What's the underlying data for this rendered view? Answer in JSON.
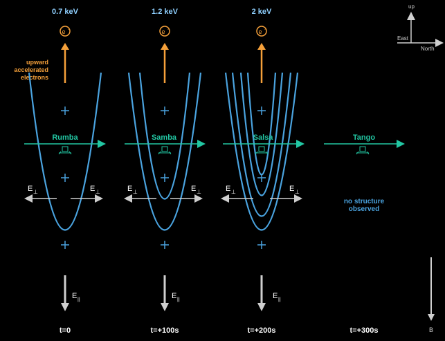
{
  "energies": [
    "0.7 keV",
    "1.2 keV",
    "2 keV"
  ],
  "electron_symbol": "e",
  "electron_sup": "-",
  "upward_label": [
    "upward",
    "accelerated",
    "electrons"
  ],
  "spacecraft": [
    "Rumba",
    "Samba",
    "Salsa",
    "Tango"
  ],
  "e_perp": "E",
  "e_perp_sub": "⊥",
  "e_par": "E",
  "e_par_sub": "||",
  "no_structure": [
    "no structure",
    "observed"
  ],
  "times": [
    "t=0",
    "t=+100s",
    "t=+200s",
    "t=+300s"
  ],
  "compass": {
    "up": "up",
    "east": "East",
    "north": "North"
  },
  "b_label": "B",
  "colors": {
    "background": "#000000",
    "curve": "#4aa3df",
    "spacecraft_line": "#22c7a3",
    "electron": "#f5a03a",
    "white": "#ffffff",
    "gray": "#cfcfcf",
    "energy_text": "#8fd0ff"
  },
  "icons": [
    "electron-icon",
    "spacecraft-icon",
    "plus-icon",
    "arrow-icon"
  ]
}
